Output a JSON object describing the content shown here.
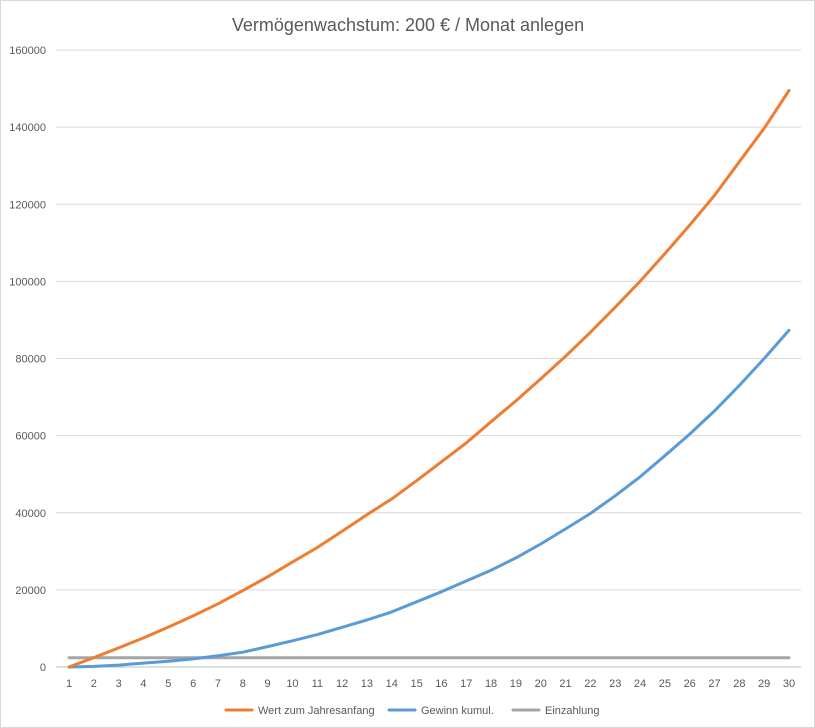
{
  "chart_data": {
    "type": "line",
    "title": "Vermögenwachstum: 200 € / Monat anlegen",
    "xlabel": "",
    "ylabel": "",
    "ylim": [
      0,
      160000
    ],
    "yticks": [
      0,
      20000,
      40000,
      60000,
      80000,
      100000,
      120000,
      140000,
      160000
    ],
    "categories": [
      "1",
      "2",
      "3",
      "4",
      "5",
      "6",
      "7",
      "8",
      "9",
      "10",
      "11",
      "12",
      "13",
      "14",
      "15",
      "16",
      "17",
      "18",
      "19",
      "20",
      "21",
      "22",
      "23",
      "24",
      "25",
      "26",
      "27",
      "28",
      "29",
      "30"
    ],
    "grid": true,
    "legend_position": "bottom",
    "series": [
      {
        "name": "Wert zum Jahresanfang",
        "color": "#ed7d31",
        "values": [
          0,
          2450,
          4950,
          7550,
          10350,
          13250,
          16400,
          19800,
          23400,
          27200,
          31000,
          35200,
          39500,
          43600,
          48300,
          53200,
          58100,
          63600,
          69000,
          74700,
          80600,
          86800,
          93300,
          100000,
          107200,
          114600,
          122300,
          131000,
          139700,
          149500
        ]
      },
      {
        "name": "Gewinn kumul.",
        "color": "#5b9bd5",
        "values": [
          0,
          150,
          500,
          1000,
          1500,
          2100,
          2900,
          3850,
          5300,
          6800,
          8400,
          10300,
          12200,
          14300,
          16900,
          19500,
          22300,
          25100,
          28300,
          31900,
          35800,
          39800,
          44400,
          49300,
          54800,
          60400,
          66400,
          73000,
          80000,
          87300
        ]
      },
      {
        "name": "Einzahlung",
        "color": "#a5a5a5",
        "values": [
          2400,
          2400,
          2400,
          2400,
          2400,
          2400,
          2400,
          2400,
          2400,
          2400,
          2400,
          2400,
          2400,
          2400,
          2400,
          2400,
          2400,
          2400,
          2400,
          2400,
          2400,
          2400,
          2400,
          2400,
          2400,
          2400,
          2400,
          2400,
          2400,
          2400
        ]
      }
    ]
  }
}
